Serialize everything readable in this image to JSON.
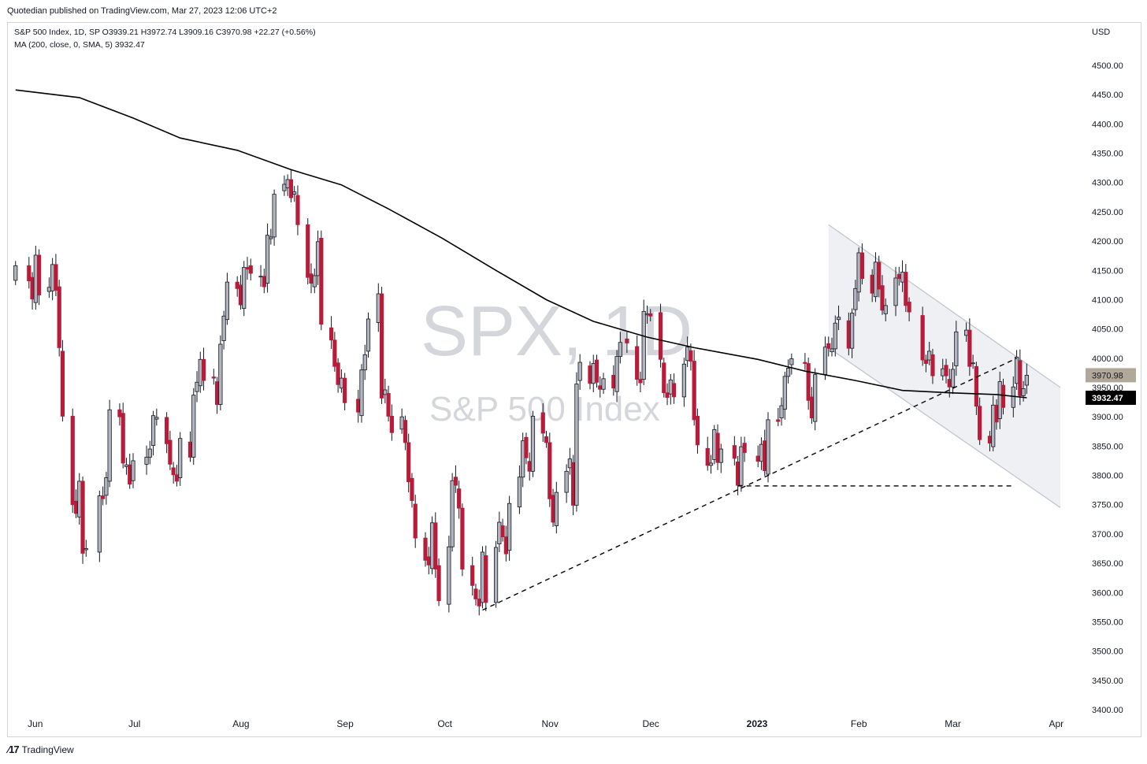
{
  "header": {
    "publisher": "Quotedian published on TradingView.com, Mar 27, 2023 12:06 UTC+2"
  },
  "legend": {
    "line1": "S&P 500 Index, 1D, SP  O3939.21  H3972.74  L3909.16  C3970.98  +22.27 (+0.56%)",
    "line2": "MA (200, close, 0, SMA, 5)  3932.47"
  },
  "watermark": {
    "symbol": "SPX, 1D",
    "description": "S&P 500 Index"
  },
  "footer": {
    "brand": "TradingView"
  },
  "colors": {
    "up_body": "#b2b5be",
    "down_body": "#b71c3a",
    "wick": "#131722",
    "ma": "#000000",
    "channel": "#e0e3eb",
    "grid": "#ffffff"
  },
  "chart_data": {
    "type": "candlestick",
    "currency": "USD",
    "x_labels": [
      "Jun",
      "Jul",
      "Aug",
      "Sep",
      "Oct",
      "Nov",
      "Dec",
      "2023",
      "Feb",
      "Mar",
      "Apr"
    ],
    "y_ticks": [
      4500,
      4450,
      4400,
      4350,
      4300,
      4250,
      4200,
      4150,
      4100,
      4050,
      4000,
      3950,
      3900,
      3850,
      3800,
      3750,
      3700,
      3650,
      3600,
      3550,
      3500,
      3450,
      3400
    ],
    "ylim": [
      3400,
      4500
    ],
    "close_badge": {
      "value": "3970.98"
    },
    "ma_badge": {
      "value": "3932.47"
    },
    "close_by_day": [
      [
        "2022-05-27",
        4158
      ],
      [
        "2022-05-31",
        4132
      ],
      [
        "2022-06-01",
        4101
      ],
      [
        "2022-06-02",
        4176
      ],
      [
        "2022-06-03",
        4108
      ],
      [
        "2022-06-06",
        4121
      ],
      [
        "2022-06-07",
        4160
      ],
      [
        "2022-06-08",
        4116
      ],
      [
        "2022-06-09",
        4018
      ],
      [
        "2022-06-10",
        3901
      ],
      [
        "2022-06-13",
        3750
      ],
      [
        "2022-06-14",
        3735
      ],
      [
        "2022-06-15",
        3790
      ],
      [
        "2022-06-16",
        3667
      ],
      [
        "2022-06-17",
        3675
      ],
      [
        "2022-06-21",
        3765
      ],
      [
        "2022-06-22",
        3760
      ],
      [
        "2022-06-23",
        3796
      ],
      [
        "2022-06-24",
        3912
      ],
      [
        "2022-06-27",
        3900
      ],
      [
        "2022-06-28",
        3821
      ],
      [
        "2022-06-29",
        3818
      ],
      [
        "2022-06-30",
        3785
      ],
      [
        "2022-07-01",
        3825
      ],
      [
        "2022-07-05",
        3831
      ],
      [
        "2022-07-06",
        3845
      ],
      [
        "2022-07-07",
        3902
      ],
      [
        "2022-07-08",
        3899
      ],
      [
        "2022-07-11",
        3854
      ],
      [
        "2022-07-12",
        3819
      ],
      [
        "2022-07-13",
        3801
      ],
      [
        "2022-07-14",
        3790
      ],
      [
        "2022-07-15",
        3863
      ],
      [
        "2022-07-18",
        3831
      ],
      [
        "2022-07-19",
        3937
      ],
      [
        "2022-07-20",
        3959
      ],
      [
        "2022-07-21",
        3998
      ],
      [
        "2022-07-22",
        3962
      ],
      [
        "2022-07-25",
        3966
      ],
      [
        "2022-07-26",
        3921
      ],
      [
        "2022-07-27",
        4024
      ],
      [
        "2022-07-28",
        4072
      ],
      [
        "2022-07-29",
        4130
      ],
      [
        "2022-08-01",
        4119
      ],
      [
        "2022-08-02",
        4091
      ],
      [
        "2022-08-03",
        4155
      ],
      [
        "2022-08-04",
        4152
      ],
      [
        "2022-08-05",
        4145
      ],
      [
        "2022-08-08",
        4140
      ],
      [
        "2022-08-09",
        4122
      ],
      [
        "2022-08-10",
        4210
      ],
      [
        "2022-08-11",
        4207
      ],
      [
        "2022-08-12",
        4280
      ],
      [
        "2022-08-15",
        4297
      ],
      [
        "2022-08-16",
        4305
      ],
      [
        "2022-08-17",
        4274
      ],
      [
        "2022-08-18",
        4284
      ],
      [
        "2022-08-19",
        4228
      ],
      [
        "2022-08-22",
        4138
      ],
      [
        "2022-08-23",
        4128
      ],
      [
        "2022-08-24",
        4141
      ],
      [
        "2022-08-25",
        4199
      ],
      [
        "2022-08-26",
        4058
      ],
      [
        "2022-08-29",
        4031
      ],
      [
        "2022-08-30",
        3986
      ],
      [
        "2022-08-31",
        3955
      ],
      [
        "2022-09-01",
        3966
      ],
      [
        "2022-09-02",
        3924
      ],
      [
        "2022-09-06",
        3908
      ],
      [
        "2022-09-07",
        3980
      ],
      [
        "2022-09-08",
        4006
      ],
      [
        "2022-09-09",
        4067
      ],
      [
        "2022-09-12",
        4110
      ],
      [
        "2022-09-13",
        3932
      ],
      [
        "2022-09-14",
        3946
      ],
      [
        "2022-09-15",
        3901
      ],
      [
        "2022-09-16",
        3873
      ],
      [
        "2022-09-19",
        3900
      ],
      [
        "2022-09-20",
        3856
      ],
      [
        "2022-09-21",
        3789
      ],
      [
        "2022-09-22",
        3757
      ],
      [
        "2022-09-23",
        3693
      ],
      [
        "2022-09-26",
        3655
      ],
      [
        "2022-09-27",
        3647
      ],
      [
        "2022-09-28",
        3719
      ],
      [
        "2022-09-29",
        3640
      ],
      [
        "2022-09-30",
        3586
      ],
      [
        "2022-10-03",
        3678
      ],
      [
        "2022-10-04",
        3791
      ],
      [
        "2022-10-05",
        3783
      ],
      [
        "2022-10-06",
        3744
      ],
      [
        "2022-10-07",
        3640
      ],
      [
        "2022-10-10",
        3612
      ],
      [
        "2022-10-11",
        3589
      ],
      [
        "2022-10-12",
        3577
      ],
      [
        "2022-10-13",
        3669
      ],
      [
        "2022-10-14",
        3583
      ],
      [
        "2022-10-17",
        3677
      ],
      [
        "2022-10-18",
        3720
      ],
      [
        "2022-10-19",
        3695
      ],
      [
        "2022-10-20",
        3666
      ],
      [
        "2022-10-21",
        3752
      ],
      [
        "2022-10-24",
        3797
      ],
      [
        "2022-10-25",
        3859
      ],
      [
        "2022-10-26",
        3830
      ],
      [
        "2022-10-27",
        3807
      ],
      [
        "2022-10-28",
        3901
      ],
      [
        "2022-10-31",
        3872
      ],
      [
        "2022-11-01",
        3856
      ],
      [
        "2022-11-02",
        3760
      ],
      [
        "2022-11-03",
        3720
      ],
      [
        "2022-11-04",
        3771
      ],
      [
        "2022-11-07",
        3807
      ],
      [
        "2022-11-08",
        3828
      ],
      [
        "2022-11-09",
        3749
      ],
      [
        "2022-11-10",
        3956
      ],
      [
        "2022-11-11",
        3993
      ],
      [
        "2022-11-14",
        3957
      ],
      [
        "2022-11-15",
        3991
      ],
      [
        "2022-11-16",
        3959
      ],
      [
        "2022-11-17",
        3947
      ],
      [
        "2022-11-18",
        3965
      ],
      [
        "2022-11-21",
        3949
      ],
      [
        "2022-11-22",
        4003
      ],
      [
        "2022-11-23",
        4027
      ],
      [
        "2022-11-25",
        4026
      ],
      [
        "2022-11-28",
        3964
      ],
      [
        "2022-11-29",
        3958
      ],
      [
        "2022-11-30",
        4080
      ],
      [
        "2022-12-01",
        4076
      ],
      [
        "2022-12-02",
        4072
      ],
      [
        "2022-12-05",
        3998
      ],
      [
        "2022-12-06",
        3941
      ],
      [
        "2022-12-07",
        3933
      ],
      [
        "2022-12-08",
        3963
      ],
      [
        "2022-12-09",
        3934
      ],
      [
        "2022-12-12",
        3990
      ],
      [
        "2022-12-13",
        4019
      ],
      [
        "2022-12-14",
        3995
      ],
      [
        "2022-12-15",
        3895
      ],
      [
        "2022-12-16",
        3852
      ],
      [
        "2022-12-19",
        3817
      ],
      [
        "2022-12-20",
        3821
      ],
      [
        "2022-12-21",
        3878
      ],
      [
        "2022-12-22",
        3822
      ],
      [
        "2022-12-23",
        3845
      ],
      [
        "2022-12-27",
        3829
      ],
      [
        "2022-12-28",
        3783
      ],
      [
        "2022-12-29",
        3849
      ],
      [
        "2022-12-30",
        3839
      ],
      [
        "2023-01-03",
        3824
      ],
      [
        "2023-01-04",
        3853
      ],
      [
        "2023-01-05",
        3808
      ],
      [
        "2023-01-06",
        3895
      ],
      [
        "2023-01-09",
        3892
      ],
      [
        "2023-01-10",
        3919
      ],
      [
        "2023-01-11",
        3969
      ],
      [
        "2023-01-12",
        3983
      ],
      [
        "2023-01-13",
        3999
      ],
      [
        "2023-01-17",
        3991
      ],
      [
        "2023-01-18",
        3928
      ],
      [
        "2023-01-19",
        3898
      ],
      [
        "2023-01-20",
        3972
      ],
      [
        "2023-01-23",
        4019
      ],
      [
        "2023-01-24",
        4017
      ],
      [
        "2023-01-25",
        4016
      ],
      [
        "2023-01-26",
        4060
      ],
      [
        "2023-01-27",
        4070
      ],
      [
        "2023-01-30",
        4017
      ],
      [
        "2023-01-31",
        4077
      ],
      [
        "2023-02-01",
        4119
      ],
      [
        "2023-02-02",
        4180
      ],
      [
        "2023-02-03",
        4136
      ],
      [
        "2023-02-06",
        4111
      ],
      [
        "2023-02-07",
        4164
      ],
      [
        "2023-02-08",
        4118
      ],
      [
        "2023-02-09",
        4082
      ],
      [
        "2023-02-10",
        4090
      ],
      [
        "2023-02-13",
        4137
      ],
      [
        "2023-02-14",
        4136
      ],
      [
        "2023-02-15",
        4147
      ],
      [
        "2023-02-16",
        4090
      ],
      [
        "2023-02-17",
        4079
      ],
      [
        "2023-02-21",
        3997
      ],
      [
        "2023-02-22",
        3991
      ],
      [
        "2023-02-23",
        4012
      ],
      [
        "2023-02-24",
        3970
      ],
      [
        "2023-02-27",
        3982
      ],
      [
        "2023-02-28",
        3970
      ],
      [
        "2023-03-01",
        3951
      ],
      [
        "2023-03-02",
        3981
      ],
      [
        "2023-03-03",
        4045
      ],
      [
        "2023-03-06",
        4048
      ],
      [
        "2023-03-07",
        3986
      ],
      [
        "2023-03-08",
        3992
      ],
      [
        "2023-03-09",
        3918
      ],
      [
        "2023-03-10",
        3861
      ],
      [
        "2023-03-13",
        3855
      ],
      [
        "2023-03-14",
        3920
      ],
      [
        "2023-03-15",
        3891
      ],
      [
        "2023-03-16",
        3960
      ],
      [
        "2023-03-17",
        3916
      ],
      [
        "2023-03-20",
        3951
      ],
      [
        "2023-03-21",
        4002
      ],
      [
        "2023-03-22",
        3936
      ],
      [
        "2023-03-23",
        3948
      ],
      [
        "2023-03-24",
        3970.98
      ]
    ],
    "ma_200": {
      "name": "MA (200, close, 0, SMA, 5)",
      "values": [
        [
          "2022-05-27",
          4458
        ],
        [
          "2022-06-15",
          4445
        ],
        [
          "2022-07-01",
          4410
        ],
        [
          "2022-07-15",
          4376
        ],
        [
          "2022-08-01",
          4355
        ],
        [
          "2022-08-17",
          4322
        ],
        [
          "2022-09-01",
          4296
        ],
        [
          "2022-09-15",
          4255
        ],
        [
          "2022-10-01",
          4205
        ],
        [
          "2022-10-17",
          4150
        ],
        [
          "2022-11-01",
          4100
        ],
        [
          "2022-11-15",
          4063
        ],
        [
          "2022-12-01",
          4036
        ],
        [
          "2022-12-15",
          4018
        ],
        [
          "2023-01-03",
          3998
        ],
        [
          "2023-01-17",
          3978
        ],
        [
          "2023-02-01",
          3962
        ],
        [
          "2023-02-15",
          3945
        ],
        [
          "2023-03-01",
          3941
        ],
        [
          "2023-03-15",
          3938
        ],
        [
          "2023-03-24",
          3932.47
        ]
      ]
    },
    "channel": {
      "upper": [
        [
          "2023-01-24",
          4228
        ],
        [
          "2023-04-03",
          3950
        ]
      ],
      "lower": [
        [
          "2023-01-24",
          4018
        ],
        [
          "2023-04-03",
          3745
        ]
      ]
    },
    "trendlines": [
      {
        "style": "dashed",
        "points": [
          [
            "2022-10-13",
            3570
          ],
          [
            "2023-03-21",
            4000
          ]
        ]
      },
      {
        "style": "dashed",
        "points": [
          [
            "2022-12-28",
            3782
          ],
          [
            "2023-03-20",
            3782
          ]
        ]
      }
    ]
  }
}
